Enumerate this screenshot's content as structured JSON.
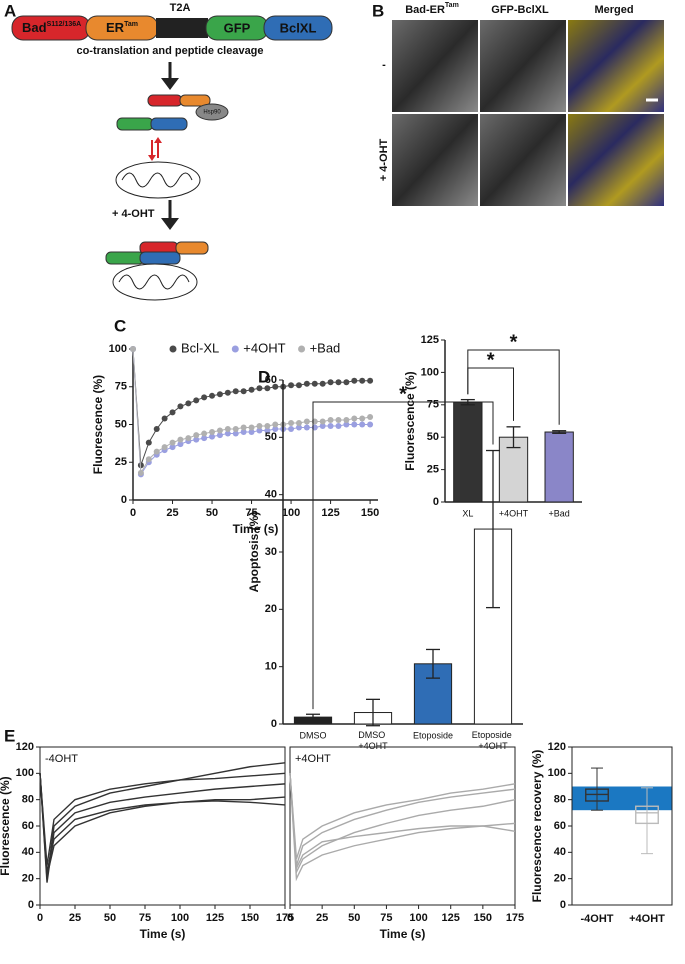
{
  "panel_labels": [
    "A",
    "B",
    "C",
    "D",
    "E"
  ],
  "diagram": {
    "linker": "T2A",
    "segments": [
      "Bad",
      "ER",
      "GFP",
      "BclXL"
    ],
    "superscripts": [
      "S112/136A",
      "Tam"
    ],
    "step": "co-translation and peptide cleavage",
    "chaperone": "Hsp90",
    "treatment": "+ 4-OHT"
  },
  "micrographs": {
    "columns": [
      "Bad-ER",
      "GFP-BclXL",
      "Merged"
    ],
    "column_superscript": "Tam",
    "rows": [
      "-",
      "+ 4-OHT"
    ]
  },
  "chart_data": [
    {
      "type": "line",
      "markers": true,
      "legend": "top",
      "xlabel": "Time (s)",
      "ylabel": "Fluorescence (%)",
      "x": [
        0,
        5,
        10,
        15,
        20,
        25,
        30,
        35,
        40,
        45,
        50,
        55,
        60,
        65,
        70,
        75,
        80,
        85,
        90,
        95,
        100,
        105,
        110,
        115,
        120,
        125,
        130,
        135,
        140,
        145,
        150
      ],
      "series": [
        {
          "name": "Bcl-XL",
          "color": "#4a4a4a",
          "values": [
            100,
            23,
            38,
            47,
            54,
            58,
            62,
            64,
            66,
            68,
            69,
            70,
            71,
            72,
            72,
            73,
            74,
            74,
            75,
            75,
            76,
            76,
            77,
            77,
            77,
            78,
            78,
            78,
            79,
            79,
            79
          ]
        },
        {
          "name": "+4OHT",
          "color": "#9a9fe0",
          "values": [
            100,
            17,
            25,
            30,
            33,
            35,
            37,
            39,
            40,
            41,
            42,
            43,
            44,
            44,
            45,
            45,
            46,
            46,
            47,
            47,
            47,
            48,
            48,
            48,
            49,
            49,
            49,
            50,
            50,
            50,
            50
          ]
        },
        {
          "name": "+Bad",
          "color": "#b0b0b0",
          "values": [
            100,
            18,
            27,
            32,
            35,
            38,
            40,
            41,
            43,
            44,
            45,
            46,
            47,
            47,
            48,
            48,
            49,
            49,
            50,
            50,
            51,
            51,
            52,
            52,
            52,
            53,
            53,
            53,
            54,
            54,
            55
          ]
        }
      ],
      "xlim": [
        0,
        155
      ],
      "xticks": [
        0,
        25,
        50,
        75,
        100,
        125,
        150
      ],
      "ylim": [
        0,
        100
      ],
      "yticks": [
        0,
        25,
        50,
        75,
        100
      ]
    },
    {
      "type": "bar",
      "ylabel": "Fluorescence (%)",
      "categories": [
        "XL",
        "+4OHT",
        "+Bad"
      ],
      "values": [
        77,
        50,
        54
      ],
      "errors": [
        2,
        8,
        1
      ],
      "colors": [
        "#333333",
        "#d4d4d4",
        "#8a86c8"
      ],
      "significance": [
        "*",
        "*"
      ],
      "ylim": [
        0,
        125
      ],
      "yticks": [
        0,
        25,
        50,
        75,
        100,
        125
      ]
    },
    {
      "type": "bar",
      "ylabel": "Apoptosis (%)",
      "categories": [
        "DMSO",
        "DMSO +4OHT",
        "Etoposide",
        "Etoposide +4OHT"
      ],
      "values": [
        1.2,
        2,
        10.5,
        34
      ],
      "errors": [
        0.5,
        2.3,
        2.5,
        13.7
      ],
      "colors": [
        "#222222",
        "#ffffff",
        "#2f6db5",
        "#ffffff"
      ],
      "significance": [
        "*"
      ],
      "ylim": [
        0,
        60
      ],
      "yticks": [
        0,
        10,
        20,
        30,
        40,
        50,
        60
      ]
    },
    {
      "type": "line",
      "frame": true,
      "annotation": "-4OHT",
      "xlabel": "Time (s)",
      "ylabel": "Fluorescence (%)",
      "x": [
        0,
        5,
        10,
        25,
        50,
        75,
        100,
        125,
        150,
        175
      ],
      "series": [
        {
          "color": "#333333",
          "values": [
            100,
            17,
            55,
            70,
            78,
            82,
            85,
            88,
            90,
            92
          ]
        },
        {
          "color": "#333333",
          "values": [
            100,
            20,
            60,
            75,
            85,
            90,
            95,
            100,
            105,
            108
          ]
        },
        {
          "color": "#333333",
          "values": [
            100,
            25,
            50,
            65,
            72,
            76,
            78,
            80,
            80,
            82
          ]
        },
        {
          "color": "#333333",
          "values": [
            100,
            30,
            65,
            80,
            88,
            92,
            95,
            96,
            98,
            100
          ]
        },
        {
          "color": "#333333",
          "values": [
            100,
            22,
            45,
            60,
            70,
            75,
            78,
            79,
            78,
            76
          ]
        }
      ],
      "xlim": [
        0,
        175
      ],
      "xticks": [
        0,
        25,
        50,
        75,
        100,
        125,
        150,
        175
      ],
      "ylim": [
        0,
        120
      ],
      "yticks": [
        0,
        20,
        40,
        60,
        80,
        100,
        120
      ]
    },
    {
      "type": "line",
      "frame": true,
      "annotation": "+4OHT",
      "xlabel": "Time (s)",
      "x": [
        0,
        5,
        10,
        25,
        50,
        75,
        100,
        125,
        150,
        175
      ],
      "series": [
        {
          "color": "#aaaaaa",
          "values": [
            100,
            25,
            35,
            45,
            55,
            62,
            68,
            72,
            75,
            80
          ]
        },
        {
          "color": "#aaaaaa",
          "values": [
            100,
            30,
            45,
            55,
            65,
            72,
            78,
            82,
            85,
            88
          ]
        },
        {
          "color": "#aaaaaa",
          "values": [
            100,
            20,
            30,
            38,
            45,
            50,
            55,
            58,
            60,
            62
          ]
        },
        {
          "color": "#aaaaaa",
          "values": [
            100,
            35,
            50,
            60,
            70,
            76,
            80,
            85,
            88,
            92
          ]
        },
        {
          "color": "#aaaaaa",
          "values": [
            100,
            28,
            38,
            48,
            52,
            55,
            58,
            60,
            60,
            56
          ]
        }
      ],
      "xlim": [
        0,
        175
      ],
      "xticks": [
        0,
        25,
        50,
        75,
        100,
        125,
        150,
        175
      ],
      "ylim": [
        0,
        120
      ]
    },
    {
      "type": "box",
      "frame": true,
      "ylabel": "Fluorescence recovery (%)",
      "categories": [
        "-4OHT",
        "+4OHT"
      ],
      "min": [
        72,
        39
      ],
      "q1": [
        79,
        62
      ],
      "median": [
        84,
        70
      ],
      "q3": [
        88,
        75
      ],
      "max": [
        104,
        89
      ],
      "colors": [
        "#333333",
        "#bbbbbb"
      ],
      "highlight": {
        "range": [
          72,
          90
        ],
        "color": "#1b78c2"
      },
      "ylim": [
        0,
        120
      ],
      "yticks": [
        0,
        20,
        40,
        60,
        80,
        100,
        120
      ]
    }
  ]
}
